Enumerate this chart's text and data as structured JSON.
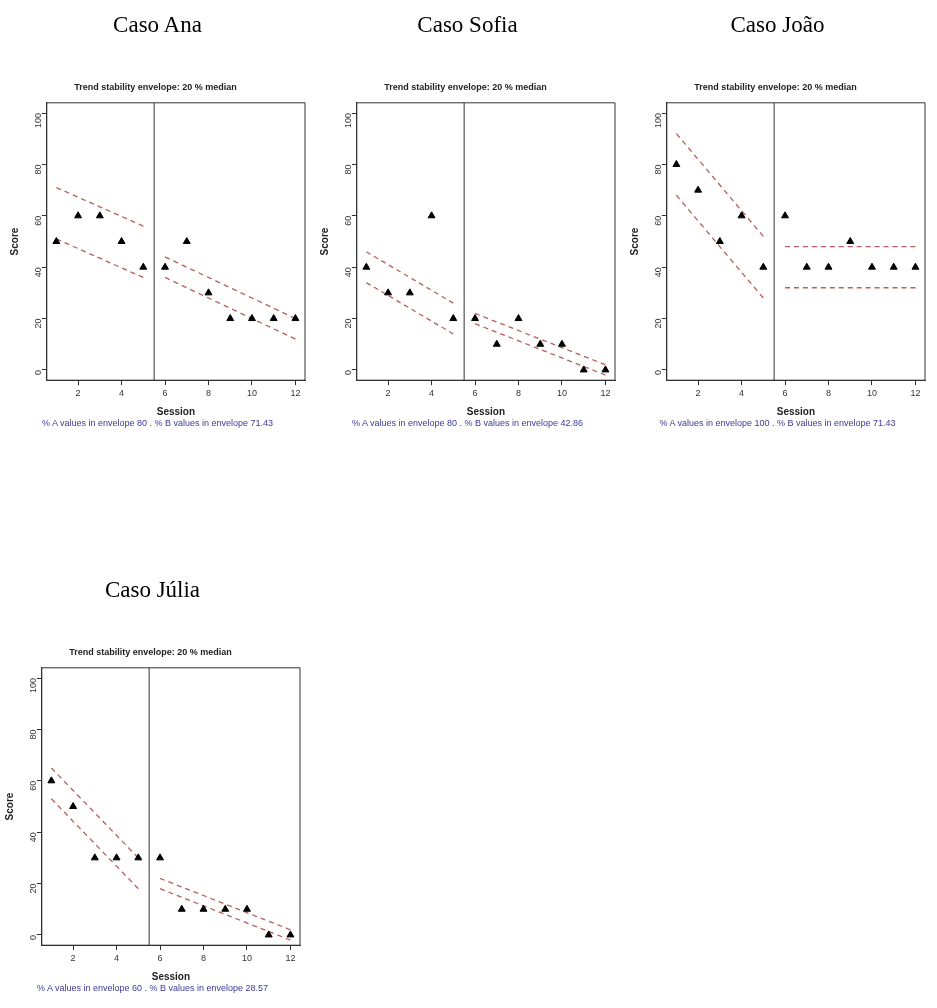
{
  "chart_data": [
    {
      "type": "scatter",
      "title": "Caso Ana",
      "subtitle": "Trend stability envelope: 20 % median",
      "xlabel": "Session",
      "ylabel": "Score",
      "annotations": [
        "% A values in envelope 80 . % B values in envelope 71.43"
      ],
      "x": [
        1,
        2,
        3,
        4,
        5,
        6,
        7,
        8,
        9,
        10,
        11,
        12
      ],
      "xlim": [
        0.56,
        12.44
      ],
      "ylim": [
        -4,
        104
      ],
      "xticks": [
        2,
        4,
        6,
        8,
        10,
        12
      ],
      "yticks": [
        0,
        20,
        40,
        60,
        80,
        100
      ],
      "grid": false,
      "legend": false,
      "marker": "triangle",
      "ref_lines": [
        {
          "axis": "x",
          "value": 5.5,
          "color": "#555555"
        }
      ],
      "series": [
        {
          "type": "scatter",
          "color": "#000000",
          "values": [
            50,
            60,
            60,
            50,
            40,
            40,
            50,
            30,
            20,
            20,
            20,
            20
          ]
        },
        {
          "type": "line",
          "color": "#b5605a",
          "line_style": "dashed",
          "marker": "none",
          "x": [
            1,
            5
          ],
          "values": [
            71,
            56
          ]
        },
        {
          "type": "line",
          "color": "#b5605a",
          "line_style": "dashed",
          "marker": "none",
          "x": [
            1,
            5
          ],
          "values": [
            51,
            36
          ]
        },
        {
          "type": "line",
          "color": "#b5605a",
          "line_style": "dashed",
          "marker": "none",
          "x": [
            6,
            12
          ],
          "values": [
            44,
            20
          ]
        },
        {
          "type": "line",
          "color": "#b5605a",
          "line_style": "dashed",
          "marker": "none",
          "x": [
            6,
            12
          ],
          "values": [
            36,
            12
          ]
        }
      ]
    },
    {
      "type": "scatter",
      "title": "Caso Sofia",
      "subtitle": "Trend stability envelope: 20 % median",
      "xlabel": "Session",
      "ylabel": "Score",
      "annotations": [
        "% A values in envelope 80 . % B values in envelope 42.86"
      ],
      "x": [
        1,
        2,
        3,
        4,
        5,
        6,
        7,
        8,
        9,
        10,
        11,
        12
      ],
      "xlim": [
        0.56,
        12.44
      ],
      "ylim": [
        -4,
        104
      ],
      "xticks": [
        2,
        4,
        6,
        8,
        10,
        12
      ],
      "yticks": [
        0,
        20,
        40,
        60,
        80,
        100
      ],
      "grid": false,
      "legend": false,
      "marker": "triangle",
      "ref_lines": [
        {
          "axis": "x",
          "value": 5.5,
          "color": "#555555"
        }
      ],
      "series": [
        {
          "type": "scatter",
          "color": "#000000",
          "values": [
            40,
            30,
            30,
            60,
            20,
            20,
            10,
            20,
            10,
            10,
            0,
            0
          ]
        },
        {
          "type": "line",
          "color": "#b5605a",
          "line_style": "dashed",
          "marker": "none",
          "x": [
            1,
            5
          ],
          "values": [
            46,
            26
          ]
        },
        {
          "type": "line",
          "color": "#b5605a",
          "line_style": "dashed",
          "marker": "none",
          "x": [
            1,
            5
          ],
          "values": [
            34,
            14
          ]
        },
        {
          "type": "line",
          "color": "#b5605a",
          "line_style": "dashed",
          "marker": "none",
          "x": [
            6,
            12
          ],
          "values": [
            22,
            2
          ]
        },
        {
          "type": "line",
          "color": "#b5605a",
          "line_style": "dashed",
          "marker": "none",
          "x": [
            6,
            12
          ],
          "values": [
            18,
            -2
          ]
        }
      ]
    },
    {
      "type": "scatter",
      "title": "Caso João",
      "subtitle": "Trend stability envelope: 20 % median",
      "xlabel": "Session",
      "ylabel": "Score",
      "annotations": [
        "% A values in envelope 100 . % B values in envelope 71.43"
      ],
      "x": [
        1,
        2,
        3,
        4,
        5,
        6,
        7,
        8,
        9,
        10,
        11,
        12
      ],
      "xlim": [
        0.56,
        12.44
      ],
      "ylim": [
        -4,
        104
      ],
      "xticks": [
        2,
        4,
        6,
        8,
        10,
        12
      ],
      "yticks": [
        0,
        20,
        40,
        60,
        80,
        100
      ],
      "grid": false,
      "legend": false,
      "marker": "triangle",
      "ref_lines": [
        {
          "axis": "x",
          "value": 5.5,
          "color": "#555555"
        }
      ],
      "series": [
        {
          "type": "scatter",
          "color": "#000000",
          "values": [
            80,
            70,
            50,
            60,
            40,
            60,
            40,
            40,
            50,
            40,
            40,
            40
          ]
        },
        {
          "type": "line",
          "color": "#b5605a",
          "line_style": "dashed",
          "marker": "none",
          "x": [
            1,
            5
          ],
          "values": [
            92,
            52
          ]
        },
        {
          "type": "line",
          "color": "#b5605a",
          "line_style": "dashed",
          "marker": "none",
          "x": [
            1,
            5
          ],
          "values": [
            68,
            28
          ]
        },
        {
          "type": "line",
          "color": "#b5605a",
          "line_style": "dashed",
          "marker": "none",
          "x": [
            6,
            12
          ],
          "values": [
            48,
            48
          ]
        },
        {
          "type": "line",
          "color": "#b5605a",
          "line_style": "dashed",
          "marker": "none",
          "x": [
            6,
            12
          ],
          "values": [
            32,
            32
          ]
        }
      ]
    },
    {
      "type": "scatter",
      "title": "Caso Júlia",
      "subtitle": "Trend stability envelope: 20 % median",
      "xlabel": "Session",
      "ylabel": "Score",
      "annotations": [
        "% A values in envelope 60 . % B values in envelope 28.57"
      ],
      "x": [
        1,
        2,
        3,
        4,
        5,
        6,
        7,
        8,
        9,
        10,
        11,
        12
      ],
      "xlim": [
        0.56,
        12.44
      ],
      "ylim": [
        -4,
        104
      ],
      "xticks": [
        2,
        4,
        6,
        8,
        10,
        12
      ],
      "yticks": [
        0,
        20,
        40,
        60,
        80,
        100
      ],
      "grid": false,
      "legend": false,
      "marker": "triangle",
      "ref_lines": [
        {
          "axis": "x",
          "value": 5.5,
          "color": "#555555"
        }
      ],
      "series": [
        {
          "type": "scatter",
          "color": "#000000",
          "values": [
            60,
            50,
            30,
            30,
            30,
            30,
            10,
            10,
            10,
            10,
            0,
            0
          ]
        },
        {
          "type": "line",
          "color": "#b5605a",
          "line_style": "dashed",
          "marker": "none",
          "x": [
            1,
            5
          ],
          "values": [
            65,
            30
          ]
        },
        {
          "type": "line",
          "color": "#b5605a",
          "line_style": "dashed",
          "marker": "none",
          "x": [
            1,
            5
          ],
          "values": [
            53,
            18
          ]
        },
        {
          "type": "line",
          "color": "#b5605a",
          "line_style": "dashed",
          "marker": "none",
          "x": [
            6,
            12
          ],
          "values": [
            22,
            2
          ]
        },
        {
          "type": "line",
          "color": "#b5605a",
          "line_style": "dashed",
          "marker": "none",
          "x": [
            6,
            12
          ],
          "values": [
            18,
            -2
          ]
        }
      ]
    }
  ]
}
